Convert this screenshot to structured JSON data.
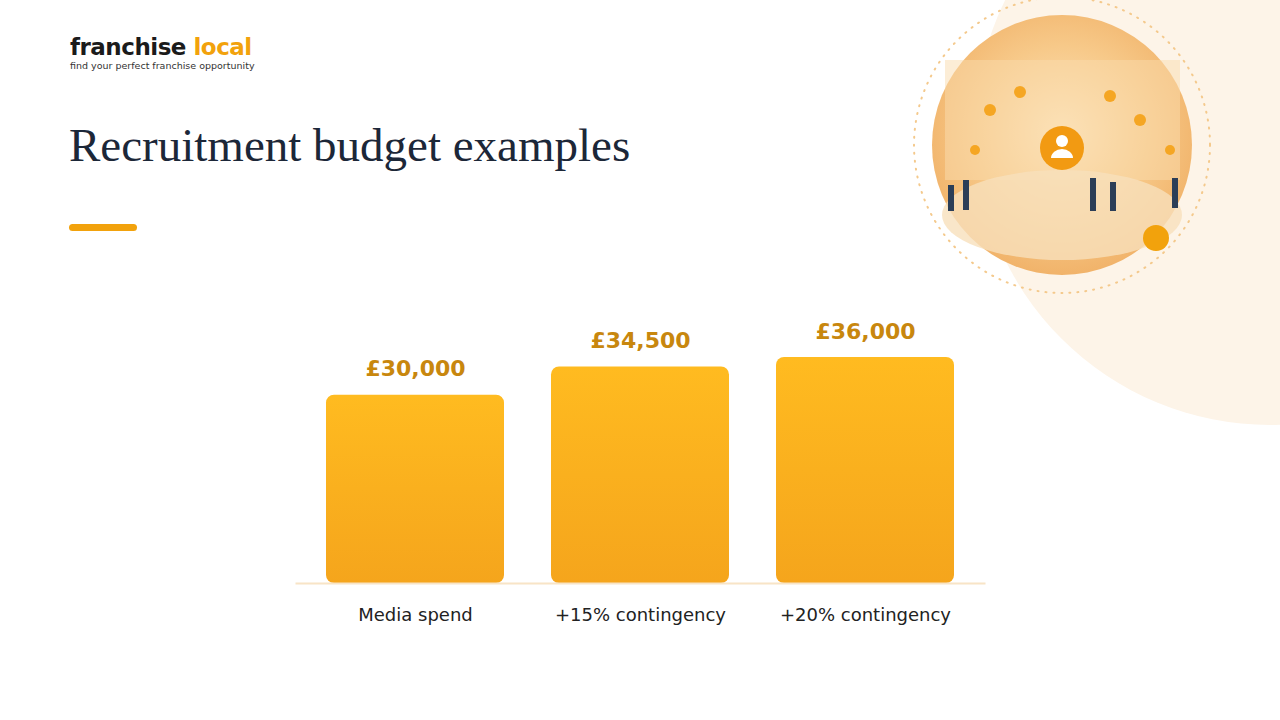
{
  "brand": [
    "franchise",
    "local"
  ],
  "tagline": "find your perfect franchise opportunity",
  "chart_data": {
    "type": "bar",
    "title": "Recruitment budget examples",
    "categories": [
      "Media spend",
      "+15% contingency",
      "+20% contingency"
    ],
    "values": [
      30000,
      34500,
      36000
    ],
    "value_labels": [
      "£30,000",
      "£34,500",
      "£36,000"
    ],
    "color": "#f5a51c",
    "data_labels": true,
    "tick_labels": "x"
  }
}
